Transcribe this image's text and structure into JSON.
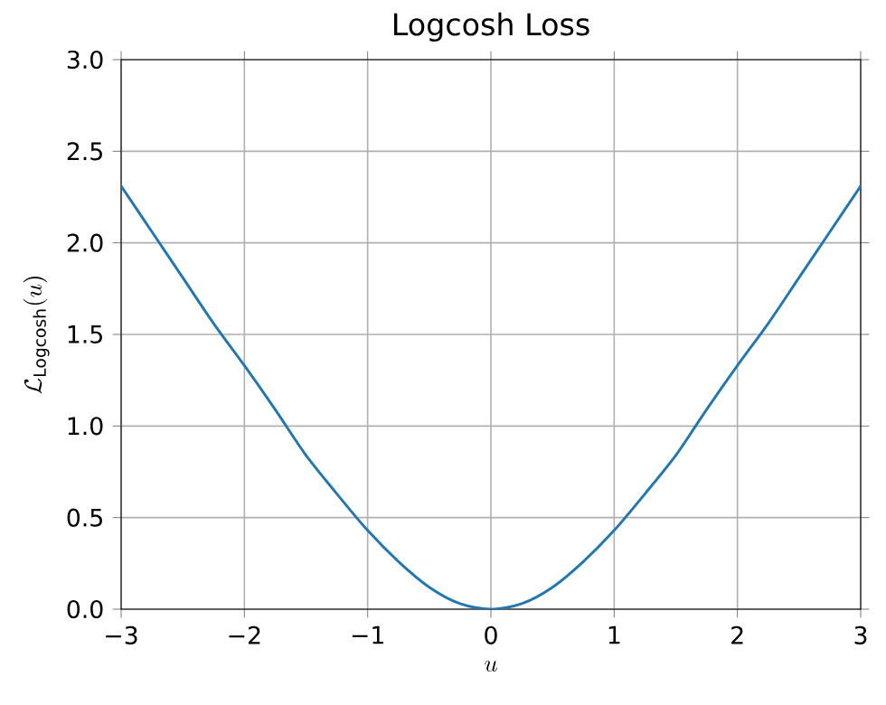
{
  "chart_data": {
    "type": "line",
    "title": "Logcosh Loss",
    "xlabel": "u",
    "ylabel": "\\mathcal{L}_{\\mathrm{Logcosh}}(u)",
    "x": [
      -3,
      -2.75,
      -2.5,
      -2.25,
      -2,
      -1.75,
      -1.5,
      -1.25,
      -1,
      -0.75,
      -0.5,
      -0.25,
      0,
      0.25,
      0.5,
      0.75,
      1,
      1.25,
      1.5,
      1.75,
      2,
      2.25,
      2.5,
      2.75,
      3
    ],
    "series": [
      {
        "color": "#1f77b4",
        "values": [
          2.31,
          2.06,
          1.81,
          1.56,
          1.33,
          1.09,
          0.84,
          0.63,
          0.43,
          0.26,
          0.12,
          0.03,
          0,
          0.03,
          0.12,
          0.26,
          0.43,
          0.63,
          0.84,
          1.09,
          1.33,
          1.56,
          1.81,
          2.06,
          2.31
        ]
      }
    ],
    "xlim": [
      -3,
      3
    ],
    "ylim": [
      0,
      3
    ],
    "xticks": [
      {
        "value": -3,
        "label": "−3"
      },
      {
        "value": -2,
        "label": "−2"
      },
      {
        "value": -1,
        "label": "−1"
      },
      0,
      1,
      2,
      3
    ],
    "yticks": [
      {
        "value": 0,
        "label": "0.0"
      },
      {
        "value": 0.5,
        "label": "0.5"
      },
      {
        "value": 1,
        "label": "1.0"
      },
      {
        "value": 1.5,
        "label": "1.5"
      },
      {
        "value": 2,
        "label": "2.0"
      },
      {
        "value": 2.5,
        "label": "2.5"
      },
      {
        "value": 3,
        "label": "3.0"
      }
    ],
    "grid": true,
    "marker": "none",
    "line_style": "solid"
  }
}
